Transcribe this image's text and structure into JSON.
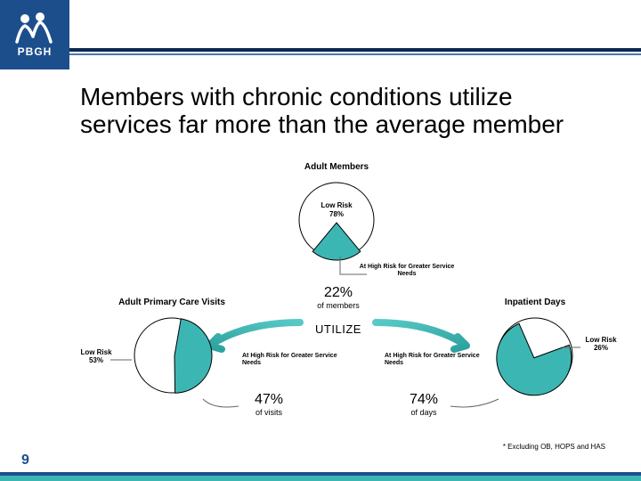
{
  "colors": {
    "brand_blue": "#1d4e8c",
    "teal": "#3cb6b3",
    "rule_dark": "#0b2a52",
    "rule_light": "#4b78b0",
    "white": "#ffffff",
    "black": "#000000",
    "grey_line": "#666666"
  },
  "logo": {
    "text": "PBGH"
  },
  "slide_title": "Members with chronic conditions utilize services far more than the average member",
  "top_pie": {
    "title": "Adult Members",
    "low_label": "Low Risk",
    "low_pct": "78%",
    "high_label": "At High Risk for Greater Service Needs",
    "callout_pct": "22%",
    "callout_sub": "of members",
    "slices": {
      "low": 78,
      "high": 22
    },
    "slice_colors": {
      "low": "#ffffff",
      "high": "#3cb6b3",
      "stroke": "#000000"
    },
    "r": 42,
    "title_fontsize": 10
  },
  "utilize_text": "UTILIZE",
  "left_pie": {
    "title": "Adult Primary Care Visits",
    "side_low_label": "Low Risk",
    "side_low_pct": "53%",
    "high_label": "At High Risk for Greater Service Needs",
    "callout_pct": "47%",
    "callout_sub": "of visits",
    "slices": {
      "low": 53,
      "high": 47
    },
    "slice_colors": {
      "low": "#ffffff",
      "high": "#3cb6b3",
      "stroke": "#000000"
    },
    "r": 42
  },
  "right_pie": {
    "title": "Inpatient Days",
    "side_low_label": "Low Risk",
    "side_low_pct": "26%",
    "high_label": "At High Risk for Greater Service Needs",
    "callout_pct": "74%",
    "callout_sub": "of days",
    "slices": {
      "low": 26,
      "high": 74
    },
    "slice_colors": {
      "low": "#ffffff",
      "high": "#3cb6b3",
      "stroke": "#000000"
    },
    "r": 42
  },
  "footnote": "* Excluding OB, HOPS and HAS",
  "page_number": "9"
}
